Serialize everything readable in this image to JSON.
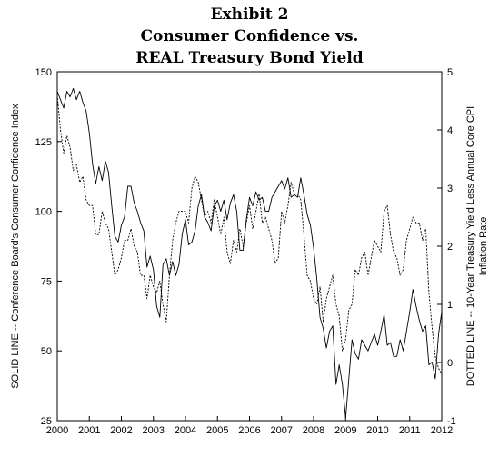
{
  "header": {
    "line1": "Exhibit 2",
    "line2": "Consumer Confidence vs.",
    "line3": "REAL Treasury Bond Yield"
  },
  "chart_data": {
    "type": "line",
    "title": "Exhibit 2 Consumer Confidence vs. REAL Treasury Bond Yield",
    "xlabel": "",
    "ylabel_left": "SOLID LINE -- Conference Board's Consumer Confidence Index",
    "ylabel_right_line1": "DOTTED LINE -- 10-Year Treasury Yield Less Annual Core CPI",
    "ylabel_right_line2": "Inflation Rate",
    "xlim": [
      2000,
      2012
    ],
    "ylim_left": [
      25,
      150
    ],
    "ylim_right": [
      -1,
      5
    ],
    "x_ticks": [
      "2000",
      "2001",
      "2002",
      "2003",
      "2004",
      "2005",
      "2006",
      "2007",
      "2008",
      "2009",
      "2010",
      "2011",
      "2012"
    ],
    "y_ticks_left": [
      "150",
      "125",
      "100",
      "75",
      "50",
      "25"
    ],
    "y_ticks_right": [
      "5",
      "4",
      "3",
      "2",
      "1",
      "0",
      "-1"
    ],
    "grid": false,
    "series": [
      {
        "axis": "left",
        "style": "solid",
        "points": [
          [
            2000.0,
            143
          ],
          [
            2000.1,
            140
          ],
          [
            2000.2,
            137
          ],
          [
            2000.3,
            143
          ],
          [
            2000.4,
            141
          ],
          [
            2000.5,
            144
          ],
          [
            2000.6,
            140
          ],
          [
            2000.7,
            143
          ],
          [
            2000.8,
            139
          ],
          [
            2000.9,
            136
          ],
          [
            2001.0,
            128
          ],
          [
            2001.1,
            117
          ],
          [
            2001.2,
            110
          ],
          [
            2001.3,
            116
          ],
          [
            2001.4,
            111
          ],
          [
            2001.5,
            118
          ],
          [
            2001.6,
            114
          ],
          [
            2001.7,
            102
          ],
          [
            2001.8,
            91
          ],
          [
            2001.9,
            89
          ],
          [
            2002.0,
            95
          ],
          [
            2002.1,
            98
          ],
          [
            2002.2,
            109
          ],
          [
            2002.3,
            109
          ],
          [
            2002.4,
            103
          ],
          [
            2002.5,
            100
          ],
          [
            2002.6,
            96
          ],
          [
            2002.7,
            93
          ],
          [
            2002.8,
            80
          ],
          [
            2002.9,
            84
          ],
          [
            2003.0,
            79
          ],
          [
            2003.1,
            66
          ],
          [
            2003.2,
            62
          ],
          [
            2003.3,
            81
          ],
          [
            2003.4,
            83
          ],
          [
            2003.5,
            77
          ],
          [
            2003.6,
            82
          ],
          [
            2003.7,
            77
          ],
          [
            2003.8,
            81
          ],
          [
            2003.9,
            92
          ],
          [
            2004.0,
            97
          ],
          [
            2004.1,
            88
          ],
          [
            2004.2,
            89
          ],
          [
            2004.3,
            93
          ],
          [
            2004.4,
            102
          ],
          [
            2004.5,
            106
          ],
          [
            2004.6,
            98
          ],
          [
            2004.7,
            96
          ],
          [
            2004.8,
            93
          ],
          [
            2004.9,
            102
          ],
          [
            2005.0,
            104
          ],
          [
            2005.1,
            100
          ],
          [
            2005.2,
            104
          ],
          [
            2005.3,
            97
          ],
          [
            2005.4,
            103
          ],
          [
            2005.5,
            106
          ],
          [
            2005.6,
            100
          ],
          [
            2005.7,
            86
          ],
          [
            2005.8,
            86
          ],
          [
            2005.9,
            97
          ],
          [
            2006.0,
            105
          ],
          [
            2006.1,
            102
          ],
          [
            2006.2,
            107
          ],
          [
            2006.3,
            104
          ],
          [
            2006.4,
            105
          ],
          [
            2006.5,
            100
          ],
          [
            2006.6,
            100
          ],
          [
            2006.7,
            105
          ],
          [
            2006.8,
            107
          ],
          [
            2006.9,
            109
          ],
          [
            2007.0,
            111
          ],
          [
            2007.1,
            108
          ],
          [
            2007.2,
            112
          ],
          [
            2007.3,
            105
          ],
          [
            2007.4,
            106
          ],
          [
            2007.5,
            105
          ],
          [
            2007.6,
            112
          ],
          [
            2007.7,
            106
          ],
          [
            2007.8,
            99
          ],
          [
            2007.9,
            95
          ],
          [
            2008.0,
            87
          ],
          [
            2008.1,
            76
          ],
          [
            2008.2,
            62
          ],
          [
            2008.3,
            58
          ],
          [
            2008.4,
            51
          ],
          [
            2008.5,
            57
          ],
          [
            2008.6,
            59
          ],
          [
            2008.7,
            38
          ],
          [
            2008.8,
            45
          ],
          [
            2008.9,
            38
          ],
          [
            2009.0,
            26
          ],
          [
            2009.1,
            40
          ],
          [
            2009.2,
            54
          ],
          [
            2009.3,
            49
          ],
          [
            2009.4,
            47
          ],
          [
            2009.5,
            54
          ],
          [
            2009.6,
            52
          ],
          [
            2009.7,
            50
          ],
          [
            2009.8,
            53
          ],
          [
            2009.9,
            56
          ],
          [
            2010.0,
            52
          ],
          [
            2010.1,
            57
          ],
          [
            2010.2,
            63
          ],
          [
            2010.3,
            52
          ],
          [
            2010.4,
            53
          ],
          [
            2010.5,
            48
          ],
          [
            2010.6,
            48
          ],
          [
            2010.7,
            54
          ],
          [
            2010.8,
            50
          ],
          [
            2010.9,
            57
          ],
          [
            2011.0,
            64
          ],
          [
            2011.1,
            72
          ],
          [
            2011.2,
            66
          ],
          [
            2011.3,
            61
          ],
          [
            2011.4,
            57
          ],
          [
            2011.5,
            59
          ],
          [
            2011.6,
            45
          ],
          [
            2011.7,
            46
          ],
          [
            2011.8,
            40
          ],
          [
            2011.9,
            56
          ],
          [
            2012.0,
            64
          ]
        ]
      },
      {
        "axis": "right",
        "style": "dotted",
        "points": [
          [
            2000.0,
            4.6
          ],
          [
            2000.1,
            4.0
          ],
          [
            2000.2,
            3.6
          ],
          [
            2000.3,
            3.9
          ],
          [
            2000.4,
            3.7
          ],
          [
            2000.5,
            3.3
          ],
          [
            2000.6,
            3.4
          ],
          [
            2000.7,
            3.1
          ],
          [
            2000.8,
            3.2
          ],
          [
            2000.9,
            2.8
          ],
          [
            2001.0,
            2.7
          ],
          [
            2001.1,
            2.7
          ],
          [
            2001.2,
            2.2
          ],
          [
            2001.3,
            2.2
          ],
          [
            2001.4,
            2.6
          ],
          [
            2001.5,
            2.4
          ],
          [
            2001.6,
            2.3
          ],
          [
            2001.7,
            1.9
          ],
          [
            2001.8,
            1.5
          ],
          [
            2001.9,
            1.6
          ],
          [
            2002.0,
            1.8
          ],
          [
            2002.1,
            2.1
          ],
          [
            2002.2,
            2.1
          ],
          [
            2002.3,
            2.3
          ],
          [
            2002.4,
            2.0
          ],
          [
            2002.5,
            1.9
          ],
          [
            2002.6,
            1.5
          ],
          [
            2002.7,
            1.5
          ],
          [
            2002.8,
            1.1
          ],
          [
            2002.9,
            1.5
          ],
          [
            2003.0,
            1.3
          ],
          [
            2003.1,
            1.2
          ],
          [
            2003.2,
            1.4
          ],
          [
            2003.3,
            1.0
          ],
          [
            2003.4,
            0.7
          ],
          [
            2003.5,
            1.5
          ],
          [
            2003.6,
            2.1
          ],
          [
            2003.7,
            2.4
          ],
          [
            2003.8,
            2.6
          ],
          [
            2003.9,
            2.6
          ],
          [
            2004.0,
            2.6
          ],
          [
            2004.1,
            2.4
          ],
          [
            2004.2,
            3.0
          ],
          [
            2004.3,
            3.2
          ],
          [
            2004.4,
            3.1
          ],
          [
            2004.5,
            2.8
          ],
          [
            2004.6,
            2.5
          ],
          [
            2004.7,
            2.6
          ],
          [
            2004.8,
            2.4
          ],
          [
            2004.9,
            2.8
          ],
          [
            2005.0,
            2.5
          ],
          [
            2005.1,
            2.2
          ],
          [
            2005.2,
            2.5
          ],
          [
            2005.3,
            1.9
          ],
          [
            2005.4,
            1.7
          ],
          [
            2005.5,
            2.1
          ],
          [
            2005.6,
            1.9
          ],
          [
            2005.7,
            2.3
          ],
          [
            2005.8,
            2.0
          ],
          [
            2005.9,
            2.4
          ],
          [
            2006.0,
            2.7
          ],
          [
            2006.1,
            2.3
          ],
          [
            2006.2,
            2.6
          ],
          [
            2006.3,
            2.9
          ],
          [
            2006.4,
            2.4
          ],
          [
            2006.5,
            2.5
          ],
          [
            2006.6,
            2.3
          ],
          [
            2006.7,
            2.1
          ],
          [
            2006.8,
            1.7
          ],
          [
            2006.9,
            1.8
          ],
          [
            2007.0,
            2.6
          ],
          [
            2007.1,
            2.4
          ],
          [
            2007.2,
            2.7
          ],
          [
            2007.3,
            3.1
          ],
          [
            2007.4,
            2.9
          ],
          [
            2007.5,
            2.9
          ],
          [
            2007.6,
            2.8
          ],
          [
            2007.7,
            2.2
          ],
          [
            2007.8,
            1.5
          ],
          [
            2007.9,
            1.4
          ],
          [
            2008.0,
            1.1
          ],
          [
            2008.1,
            1.0
          ],
          [
            2008.2,
            1.3
          ],
          [
            2008.3,
            0.7
          ],
          [
            2008.4,
            1.1
          ],
          [
            2008.5,
            1.3
          ],
          [
            2008.6,
            1.5
          ],
          [
            2008.7,
            1.0
          ],
          [
            2008.8,
            0.8
          ],
          [
            2008.9,
            0.2
          ],
          [
            2009.0,
            0.4
          ],
          [
            2009.1,
            0.9
          ],
          [
            2009.2,
            1.0
          ],
          [
            2009.3,
            1.6
          ],
          [
            2009.4,
            1.5
          ],
          [
            2009.5,
            1.8
          ],
          [
            2009.6,
            1.9
          ],
          [
            2009.7,
            1.5
          ],
          [
            2009.8,
            1.8
          ],
          [
            2009.9,
            2.1
          ],
          [
            2010.0,
            2.0
          ],
          [
            2010.1,
            1.9
          ],
          [
            2010.2,
            2.6
          ],
          [
            2010.3,
            2.7
          ],
          [
            2010.4,
            2.2
          ],
          [
            2010.5,
            1.9
          ],
          [
            2010.6,
            1.8
          ],
          [
            2010.7,
            1.5
          ],
          [
            2010.8,
            1.6
          ],
          [
            2010.9,
            2.1
          ],
          [
            2011.0,
            2.3
          ],
          [
            2011.1,
            2.5
          ],
          [
            2011.2,
            2.4
          ],
          [
            2011.3,
            2.4
          ],
          [
            2011.4,
            2.1
          ],
          [
            2011.5,
            2.3
          ],
          [
            2011.6,
            1.2
          ],
          [
            2011.7,
            0.6
          ],
          [
            2011.8,
            0.1
          ],
          [
            2011.9,
            -0.1
          ],
          [
            2012.0,
            -0.2
          ]
        ]
      }
    ]
  }
}
